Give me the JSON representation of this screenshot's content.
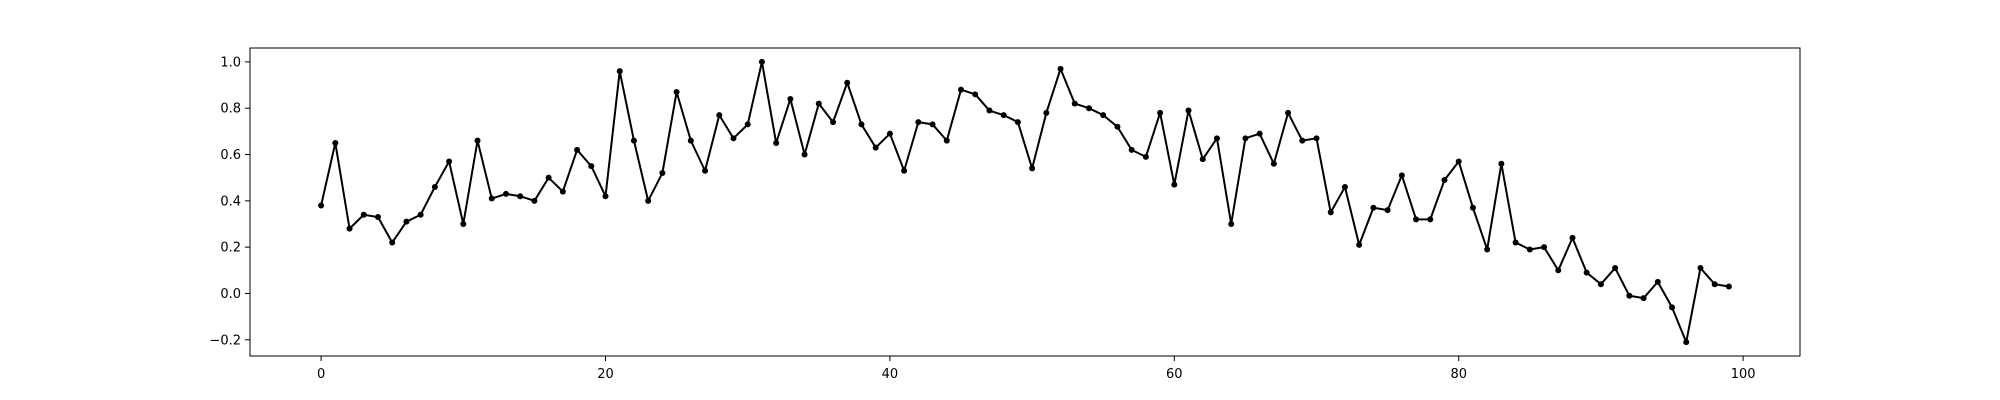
{
  "chart_data": {
    "type": "line",
    "title": "",
    "xlabel": "",
    "ylabel": "",
    "xlim": [
      -5,
      104
    ],
    "ylim": [
      -0.27,
      1.06
    ],
    "grid": false,
    "legend": "none",
    "x_ticks": [
      0,
      20,
      40,
      60,
      80,
      100
    ],
    "x_tick_labels": [
      "0",
      "20",
      "40",
      "60",
      "80",
      "100"
    ],
    "y_ticks": [
      -0.2,
      0.0,
      0.2,
      0.4,
      0.6,
      0.8,
      1.0
    ],
    "y_tick_labels": [
      "−0.2",
      "0.0",
      "0.2",
      "0.4",
      "0.6",
      "0.8",
      "1.0"
    ],
    "colors": {
      "line": "#000000",
      "marker": "#000000",
      "axes": "#000000"
    },
    "series": [
      {
        "marker": "dot",
        "x": [
          0,
          1,
          2,
          3,
          4,
          5,
          6,
          7,
          8,
          9,
          10,
          11,
          12,
          13,
          14,
          15,
          16,
          17,
          18,
          19,
          20,
          21,
          22,
          23,
          24,
          25,
          26,
          27,
          28,
          29,
          30,
          31,
          32,
          33,
          34,
          35,
          36,
          37,
          38,
          39,
          40,
          41,
          42,
          43,
          44,
          45,
          46,
          47,
          48,
          49,
          50,
          51,
          52,
          53,
          54,
          55,
          56,
          57,
          58,
          59,
          60,
          61,
          62,
          63,
          64,
          65,
          66,
          67,
          68,
          69,
          70,
          71,
          72,
          73,
          74,
          75,
          76,
          77,
          78,
          79,
          80,
          81,
          82,
          83,
          84,
          85,
          86,
          87,
          88,
          89,
          90,
          91,
          92,
          93,
          94,
          95,
          96,
          97,
          98,
          99
        ],
        "y": [
          0.38,
          0.65,
          0.28,
          0.34,
          0.33,
          0.22,
          0.31,
          0.34,
          0.46,
          0.57,
          0.3,
          0.66,
          0.41,
          0.43,
          0.42,
          0.4,
          0.5,
          0.44,
          0.62,
          0.55,
          0.42,
          0.96,
          0.66,
          0.4,
          0.52,
          0.87,
          0.66,
          0.53,
          0.77,
          0.67,
          0.73,
          1.0,
          0.65,
          0.84,
          0.6,
          0.82,
          0.74,
          0.91,
          0.73,
          0.63,
          0.69,
          0.53,
          0.74,
          0.73,
          0.66,
          0.88,
          0.86,
          0.79,
          0.77,
          0.74,
          0.54,
          0.78,
          0.97,
          0.82,
          0.8,
          0.77,
          0.72,
          0.62,
          0.59,
          0.78,
          0.47,
          0.79,
          0.58,
          0.67,
          0.3,
          0.67,
          0.69,
          0.56,
          0.78,
          0.66,
          0.67,
          0.35,
          0.46,
          0.21,
          0.37,
          0.36,
          0.51,
          0.32,
          0.32,
          0.49,
          0.57,
          0.37,
          0.19,
          0.56,
          0.22,
          0.19,
          0.2,
          0.1,
          0.24,
          0.09,
          0.04,
          0.11,
          -0.01,
          -0.02,
          0.05,
          -0.06,
          -0.21,
          0.11,
          0.04,
          0.03
        ]
      }
    ]
  }
}
